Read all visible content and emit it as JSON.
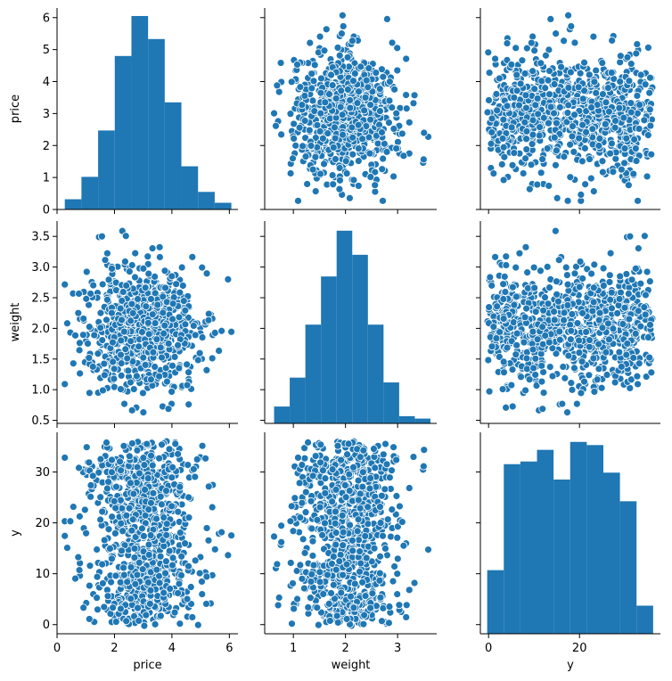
{
  "chart_data": {
    "type": "scatter",
    "kind": "pairplot",
    "variables": [
      "price",
      "weight",
      "y"
    ],
    "colors": {
      "marker": "#1f77b4",
      "edge": "#ffffff",
      "axis": "#000000"
    },
    "axes": {
      "price": {
        "label": "price",
        "lim": [
          0.0,
          6.3
        ],
        "ticks": [
          0,
          2,
          4,
          6
        ],
        "tick_labels": [
          "0",
          "2",
          "4",
          "6"
        ]
      },
      "weight": {
        "label": "weight",
        "lim": [
          0.45,
          3.75
        ],
        "ticks": [
          0.5,
          1,
          1.5,
          2,
          2.5,
          3,
          3.5
        ],
        "tick_labels": [
          "0.5",
          "1.0",
          "1.5",
          "2.0",
          "2.5",
          "3.0",
          "3.5"
        ]
      },
      "weight_x_ticks": [
        1,
        2,
        3
      ],
      "weight_x_tick_labels": [
        "1",
        "2",
        "3"
      ],
      "y": {
        "label": "y",
        "lim": [
          -1.8,
          37.8
        ],
        "ticks": [
          0,
          10,
          20,
          30
        ],
        "tick_labels": [
          "0",
          "10",
          "20",
          "30"
        ]
      },
      "y_x_ticks": [
        0,
        20
      ],
      "y_x_tick_labels": [
        "0",
        "20"
      ]
    },
    "histograms": {
      "price": {
        "count_axis": {
          "lim": [
            0,
            6.3
          ],
          "ticks": [
            0,
            1,
            2,
            3,
            4,
            5,
            6
          ],
          "tick_labels": [
            "0",
            "1",
            "2",
            "3",
            "4",
            "5",
            "6"
          ]
        },
        "edges": [
          0.27,
          0.85,
          1.43,
          2.01,
          2.59,
          3.17,
          3.75,
          4.33,
          4.91,
          5.49,
          6.07
        ],
        "heights": [
          0.32,
          1.02,
          2.47,
          4.8,
          6.05,
          5.33,
          3.35,
          1.35,
          0.55,
          0.21
        ]
      },
      "weight": {
        "edges": [
          0.63,
          0.93,
          1.23,
          1.53,
          1.83,
          2.13,
          2.43,
          2.73,
          3.03,
          3.33,
          3.63
        ],
        "heights": [
          0.07,
          0.19,
          0.41,
          0.61,
          0.8,
          0.7,
          0.41,
          0.17,
          0.03,
          0.02
        ]
      },
      "y": {
        "edges": [
          -0.3,
          3.35,
          7.0,
          10.65,
          14.3,
          17.95,
          21.6,
          25.25,
          28.9,
          32.55,
          36.2
        ],
        "heights": [
          12,
          32,
          32.5,
          34.7,
          29.1,
          36.2,
          35.6,
          30.4,
          25,
          5.3
        ]
      }
    },
    "series": [
      {
        "n_points": 900,
        "price_mean": 3.0,
        "price_sd": 0.95,
        "weight_mean": 2.0,
        "weight_sd": 0.5,
        "y_min": -0.3,
        "y_max": 36.2
      }
    ]
  }
}
